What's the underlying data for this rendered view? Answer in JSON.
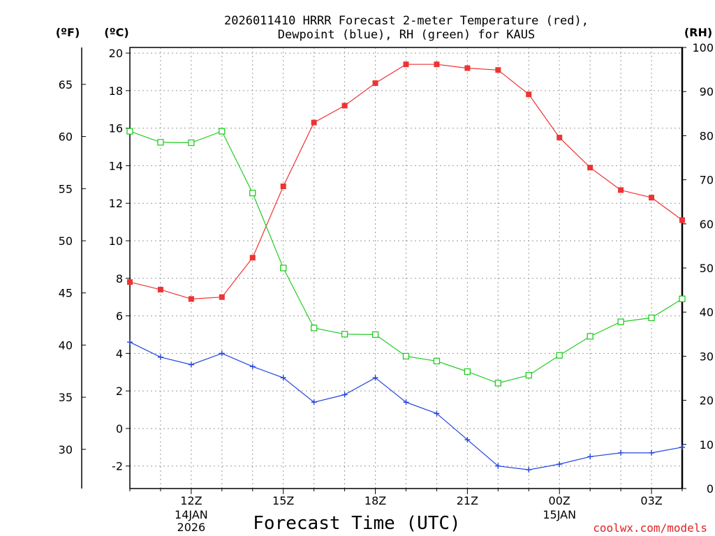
{
  "chart_data": {
    "type": "line",
    "title_line1": "2026011410 HRRR Forecast 2-meter Temperature (red),",
    "title_line2": "Dewpoint (blue), RH (green) for KAUS",
    "units": {
      "fahrenheit": "(ºF)",
      "celsius": "(ºC)",
      "rh": "(RH)"
    },
    "xlabel": "Forecast Time (UTC)",
    "credit": "coolwx.com/models",
    "x_hours": [
      10,
      11,
      12,
      13,
      14,
      15,
      16,
      17,
      18,
      19,
      20,
      21,
      22,
      23,
      24,
      25,
      26,
      27,
      28
    ],
    "xlim": [
      10,
      28
    ],
    "x_ticks": [
      {
        "hour": 12,
        "label": "12Z",
        "sub1": "14JAN",
        "sub2": "2026"
      },
      {
        "hour": 15,
        "label": "15Z",
        "sub1": "",
        "sub2": ""
      },
      {
        "hour": 18,
        "label": "18Z",
        "sub1": "",
        "sub2": ""
      },
      {
        "hour": 21,
        "label": "21Z",
        "sub1": "",
        "sub2": ""
      },
      {
        "hour": 24,
        "label": "00Z",
        "sub1": "15JAN",
        "sub2": ""
      },
      {
        "hour": 27,
        "label": "03Z",
        "sub1": "",
        "sub2": ""
      }
    ],
    "ylim_c": [
      -3.2,
      20.3
    ],
    "y_ticks_c": [
      "-2",
      "0",
      "2",
      "4",
      "6",
      "8",
      "10",
      "12",
      "14",
      "16",
      "18",
      "20"
    ],
    "y_ticks_f": [
      "30",
      "35",
      "40",
      "45",
      "50",
      "55",
      "60",
      "65"
    ],
    "ylim_rh": [
      0,
      100
    ],
    "y_ticks_rh": [
      "0",
      "10",
      "20",
      "30",
      "40",
      "50",
      "60",
      "70",
      "80",
      "90",
      "100"
    ],
    "series": [
      {
        "name": "Temperature",
        "axis": "celsius",
        "color": "#ee3333",
        "marker": "filled-square",
        "values": [
          7.8,
          7.4,
          6.9,
          7.0,
          9.1,
          12.9,
          16.3,
          17.2,
          18.4,
          19.4,
          19.4,
          19.2,
          19.1,
          17.8,
          15.5,
          13.9,
          12.7,
          12.3,
          11.1
        ]
      },
      {
        "name": "Dewpoint",
        "axis": "celsius",
        "color": "#2244dd",
        "marker": "plus",
        "values": [
          4.6,
          3.8,
          3.4,
          4.0,
          3.3,
          2.7,
          1.4,
          1.8,
          2.7,
          1.4,
          0.8,
          -0.6,
          -2.0,
          -2.2,
          -1.9,
          -1.5,
          -1.3,
          -1.3,
          -1.0
        ]
      },
      {
        "name": "RH",
        "axis": "rh",
        "color": "#22cc22",
        "marker": "open-square",
        "values": [
          81,
          78.5,
          78.4,
          81,
          67,
          50,
          36.4,
          35,
          34.9,
          30,
          28.9,
          26.5,
          23.9,
          25.7,
          30.2,
          34.5,
          37.8,
          38.7,
          43
        ]
      }
    ]
  }
}
